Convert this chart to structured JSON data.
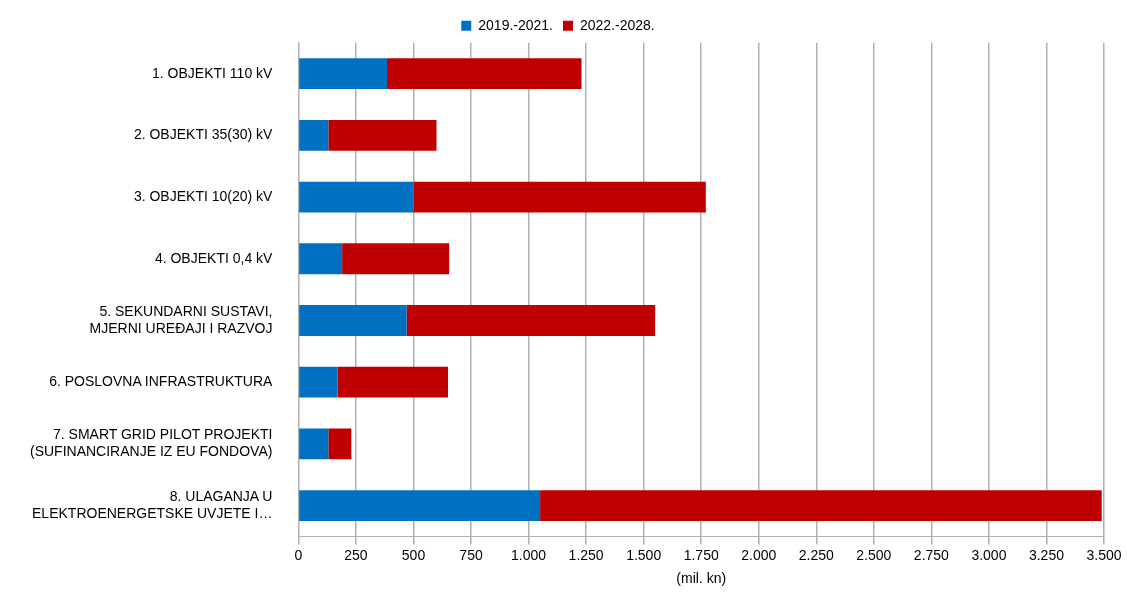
{
  "chart_data": {
    "type": "bar",
    "orientation": "horizontal",
    "stacked": true,
    "xlabel": "(mil. kn)",
    "categories": [
      "1. OBJEKTI 110 kV",
      "2. OBJEKTI 35(30) kV",
      "3. OBJEKTI 10(20) kV",
      "4. OBJEKTI 0,4 kV",
      "5. SEKUNDARNI SUSTAVI,\nMJERNI UREĐAJI I RAZVOJ",
      "6. POSLOVNA INFRASTRUKTURA",
      "7. SMART GRID PILOT PROJEKTI\n(SUFINANCIRANJE IZ EU FONDOVA)",
      "8. ULAGANJA U\nELEKTROENERGETSKE UVJETE I…"
    ],
    "series": [
      {
        "name": "2019.-2021.",
        "color": "#0070c0",
        "values": [
          385,
          130,
          500,
          190,
          470,
          170,
          130,
          1050
        ]
      },
      {
        "name": "2022.-2028.",
        "color": "#c00000",
        "values": [
          845,
          470,
          1270,
          465,
          1080,
          480,
          100,
          2440
        ]
      }
    ],
    "xlim": [
      0,
      3500
    ],
    "xticks": [
      0,
      250,
      500,
      750,
      {
        "value": 1000,
        "label": "1.000"
      },
      {
        "value": 1250,
        "label": "1.250"
      },
      {
        "value": 1500,
        "label": "1.500"
      },
      {
        "value": 1750,
        "label": "1.750"
      },
      {
        "value": 2000,
        "label": "2.000"
      },
      {
        "value": 2250,
        "label": "2.250"
      },
      {
        "value": 2500,
        "label": "2.500"
      },
      {
        "value": 2750,
        "label": "2.750"
      },
      {
        "value": 3000,
        "label": "3.000"
      },
      {
        "value": 3250,
        "label": "3.250"
      },
      {
        "value": 3500,
        "label": "3.500"
      }
    ],
    "grid": "x",
    "legend": "top"
  }
}
